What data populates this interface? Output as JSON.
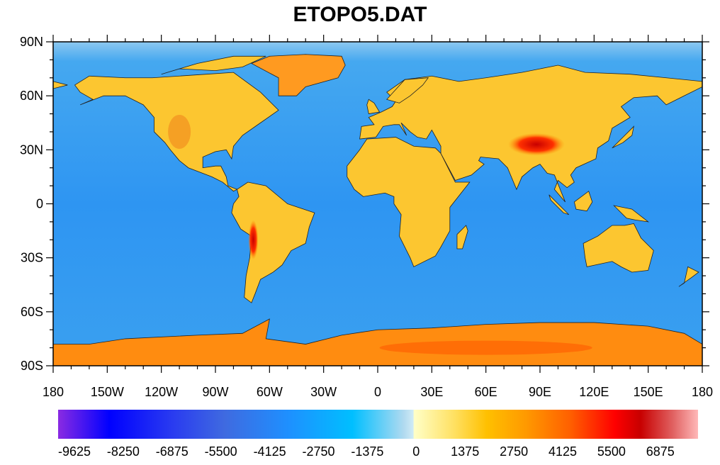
{
  "title": "ETOPO5.DAT",
  "map": {
    "lat_labels": [
      "90N",
      "60N",
      "30N",
      "0",
      "30S",
      "60S",
      "90S"
    ],
    "lon_labels": [
      "180",
      "150W",
      "120W",
      "90W",
      "60W",
      "30W",
      "0",
      "30E",
      "60E",
      "90E",
      "120E",
      "150E",
      "180"
    ]
  },
  "colorbar": {
    "labels": [
      "-9625",
      "-8250",
      "-6875",
      "-5500",
      "-4125",
      "-2750",
      "-1375",
      "0",
      "1375",
      "2750",
      "4125",
      "5500",
      "6875"
    ]
  },
  "colors": {
    "ocean": "#3aa0f0",
    "land": "#fcc630",
    "high": "#e03000"
  }
}
